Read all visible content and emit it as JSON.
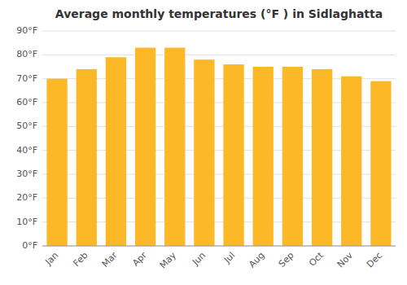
{
  "chart_data": {
    "type": "bar",
    "title": "Average monthly temperatures (°F ) in Sidlaghatta",
    "categories": [
      "Jan",
      "Feb",
      "Mar",
      "Apr",
      "May",
      "Jun",
      "Jul",
      "Aug",
      "Sep",
      "Oct",
      "Nov",
      "Dec"
    ],
    "values": [
      70,
      74,
      79,
      83,
      83,
      78,
      76,
      75,
      75,
      74,
      71,
      69
    ],
    "color": "#FDB827",
    "ylim": [
      0,
      90
    ],
    "yticks": [
      {
        "value": 0,
        "label": "0°F"
      },
      {
        "value": 10,
        "label": "10°F"
      },
      {
        "value": 20,
        "label": "20°F"
      },
      {
        "value": 30,
        "label": "30°F"
      },
      {
        "value": 40,
        "label": "40°F"
      },
      {
        "value": 50,
        "label": "50°F"
      },
      {
        "value": 60,
        "label": "60°F"
      },
      {
        "value": 70,
        "label": "70°F"
      },
      {
        "value": 80,
        "label": "80°F"
      },
      {
        "value": 90,
        "label": "90°F"
      }
    ],
    "grid": true
  }
}
